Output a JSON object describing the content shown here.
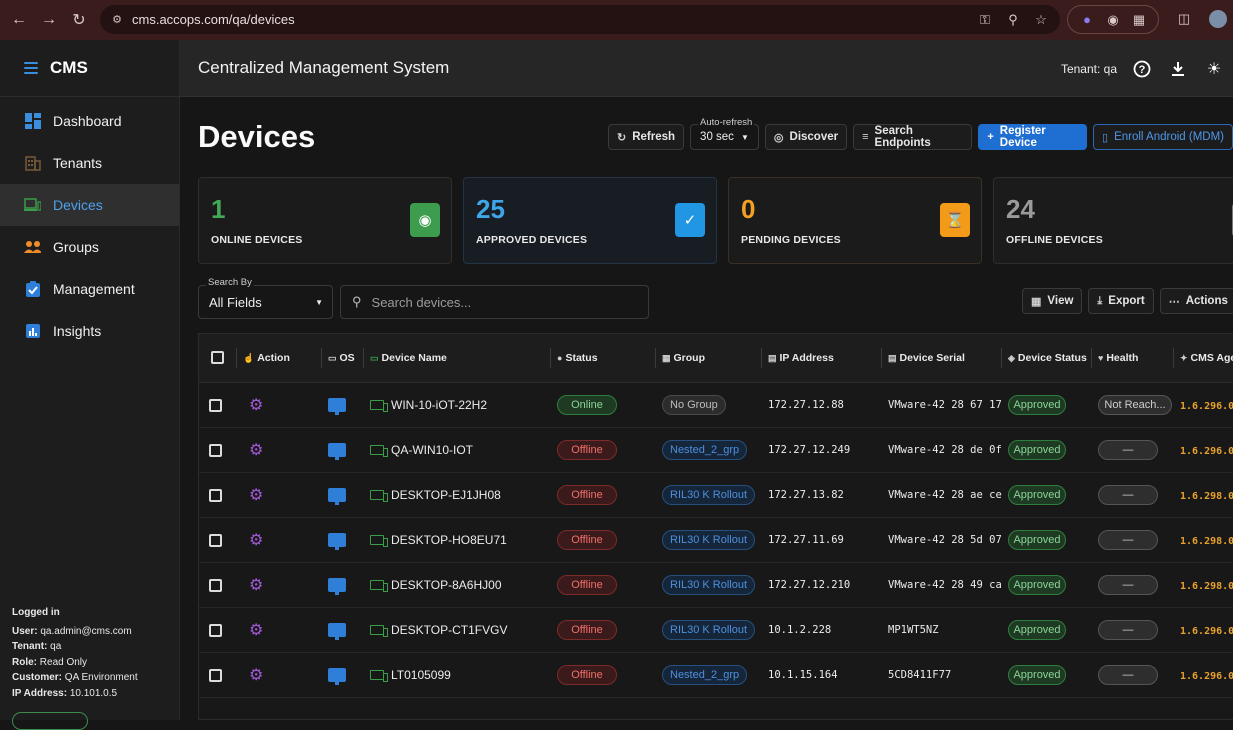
{
  "browser": {
    "url": "cms.accops.com/qa/devices"
  },
  "sidebar": {
    "brand": "CMS",
    "items": [
      {
        "label": "Dashboard"
      },
      {
        "label": "Tenants"
      },
      {
        "label": "Devices"
      },
      {
        "label": "Groups"
      },
      {
        "label": "Management"
      },
      {
        "label": "Insights"
      }
    ],
    "login": {
      "heading": "Logged in",
      "user_key": "User:",
      "user": "qa.admin@cms.com",
      "tenant_key": "Tenant:",
      "tenant": "qa",
      "role_key": "Role:",
      "role": "Read Only",
      "customer_key": "Customer:",
      "customer": "QA Environment",
      "ip_key": "IP Address:",
      "ip": "10.101.0.5"
    }
  },
  "header": {
    "title": "Centralized Management System",
    "tenant": "Tenant: qa"
  },
  "page": {
    "title": "Devices",
    "toolbar": {
      "refresh": "Refresh",
      "autorefresh_label": "Auto-refresh",
      "autorefresh_value": "30 sec",
      "discover": "Discover",
      "search_endpoints": "Search Endpoints",
      "register": "Register Device",
      "enroll": "Enroll Android (MDM)"
    },
    "stats": [
      {
        "value": "1",
        "label": "ONLINE DEVICES",
        "color": "#43a857",
        "badge_color": "#3d9c4d"
      },
      {
        "value": "25",
        "label": "APPROVED DEVICES",
        "color": "#3ea6e8",
        "badge_color": "#2196e3"
      },
      {
        "value": "0",
        "label": "PENDING DEVICES",
        "color": "#f5a020",
        "badge_color": "#f39a18"
      },
      {
        "value": "24",
        "label": "OFFLINE DEVICES",
        "color": "#9a9a9a",
        "badge_color": "#777777"
      }
    ],
    "search": {
      "by_label": "Search By",
      "by_value": "All Fields",
      "placeholder": "Search devices..."
    },
    "actions": {
      "view": "View",
      "export": "Export",
      "more": "Actions"
    }
  },
  "table": {
    "columns": [
      "Action",
      "OS",
      "Device Name",
      "Status",
      "Group",
      "IP Address",
      "Device Serial",
      "Device Status",
      "Health",
      "CMS Agent"
    ],
    "rows": [
      {
        "name": "WIN-10-iOT-22H2",
        "status": "Online",
        "group": "No Group",
        "ip": "172.27.12.88",
        "serial": "VMware-42 28 67 17",
        "device_status": "Approved",
        "health": "Not Reach...",
        "agent": "1.6.296.0"
      },
      {
        "name": "QA-WIN10-IOT",
        "status": "Offline",
        "group": "Nested_2_grp",
        "ip": "172.27.12.249",
        "serial": "VMware-42 28 de 0f",
        "device_status": "Approved",
        "health": "—",
        "agent": "1.6.296.0"
      },
      {
        "name": "DESKTOP-EJ1JH08",
        "status": "Offline",
        "group": "RIL30 K Rollout",
        "ip": "172.27.13.82",
        "serial": "VMware-42 28 ae ce",
        "device_status": "Approved",
        "health": "—",
        "agent": "1.6.298.0"
      },
      {
        "name": "DESKTOP-HO8EU71",
        "status": "Offline",
        "group": "RIL30 K Rollout",
        "ip": "172.27.11.69",
        "serial": "VMware-42 28 5d 07",
        "device_status": "Approved",
        "health": "—",
        "agent": "1.6.298.0"
      },
      {
        "name": "DESKTOP-8A6HJ00",
        "status": "Offline",
        "group": "RIL30 K Rollout",
        "ip": "172.27.12.210",
        "serial": "VMware-42 28 49 ca",
        "device_status": "Approved",
        "health": "—",
        "agent": "1.6.298.0"
      },
      {
        "name": "DESKTOP-CT1FVGV",
        "status": "Offline",
        "group": "RIL30 K Rollout",
        "ip": "10.1.2.228",
        "serial": "MP1WT5NZ",
        "device_status": "Approved",
        "health": "—",
        "agent": "1.6.296.0"
      },
      {
        "name": "LT0105099",
        "status": "Offline",
        "group": "Nested_2_grp",
        "ip": "10.1.15.164",
        "serial": "5CD8411F77",
        "device_status": "Approved",
        "health": "—",
        "agent": "1.6.296.0"
      }
    ]
  }
}
